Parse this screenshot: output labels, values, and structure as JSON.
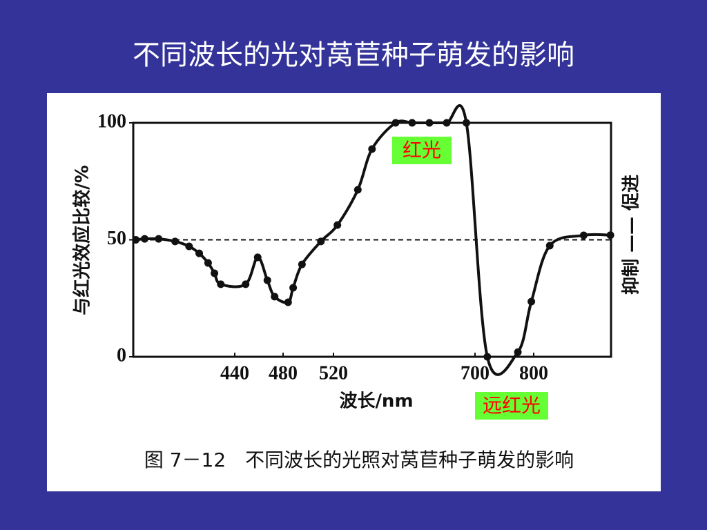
{
  "slide_title": "不同波长的光对莴苣种子萌发的影响",
  "chart_data": {
    "type": "line",
    "ylabel": "与红光效应比较/%",
    "xlabel": "波长/nm",
    "y2label": "抑制 —— 促进",
    "caption": "图 7－12　不同波长的光照对莴苣种子萌发的影响",
    "annotations": [
      "红光",
      "远红光"
    ],
    "annotation_color": "#66ff33",
    "annotation_text_color": "#ff0000",
    "reference_line": 50,
    "xlim": [
      360,
      930
    ],
    "xticks": [
      440,
      480,
      520,
      700,
      800
    ],
    "ylim": [
      0,
      100
    ],
    "yticks": [
      0,
      50,
      100
    ],
    "series": [
      {
        "color": "#111111",
        "x": [
          362,
          369,
          380,
          393,
          404,
          412,
          419,
          424,
          429,
          449,
          459,
          467,
          473,
          484,
          488,
          495,
          510,
          525,
          551,
          569,
          599,
          620,
          642,
          664,
          689,
          721,
          773,
          796,
          827,
          884,
          929
        ],
        "values": [
          50,
          50.4,
          50.4,
          49.3,
          47.2,
          44.2,
          40.1,
          35.7,
          31,
          31,
          42.5,
          32.7,
          25.7,
          23.3,
          29.5,
          39.5,
          49.3,
          56.3,
          71.4,
          88.8,
          100,
          100,
          100,
          100,
          100,
          0,
          2,
          23.6,
          47.5,
          51.9,
          52
        ]
      }
    ]
  }
}
